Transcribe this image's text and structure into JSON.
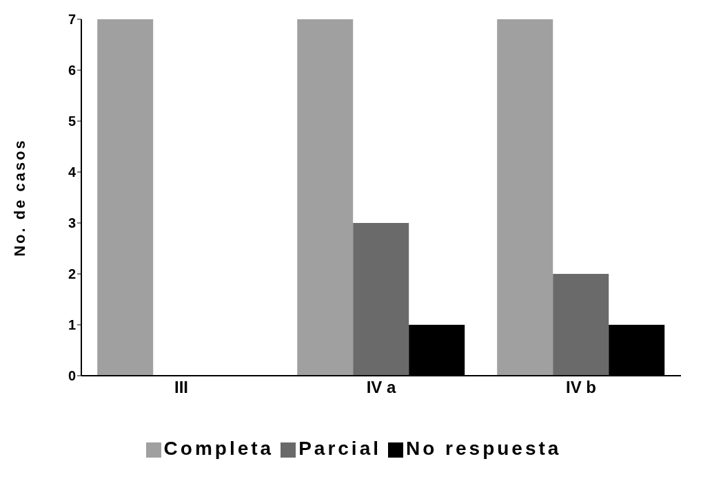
{
  "chart_data": {
    "type": "bar",
    "ylabel": "No. de casos",
    "categories": [
      "III",
      "IV a",
      "IV b"
    ],
    "series": [
      {
        "name": "Completa",
        "color": "#a0a0a0",
        "values": [
          7,
          7,
          7
        ]
      },
      {
        "name": "Parcial",
        "color": "#6a6a6a",
        "values": [
          0,
          3,
          2
        ]
      },
      {
        "name": "No respuesta",
        "color": "#000000",
        "values": [
          0,
          1,
          1
        ]
      }
    ],
    "ylim": [
      0,
      7
    ],
    "yticks": [
      0,
      1,
      2,
      3,
      4,
      5,
      6,
      7
    ],
    "grid": false,
    "legend": "bottom"
  }
}
